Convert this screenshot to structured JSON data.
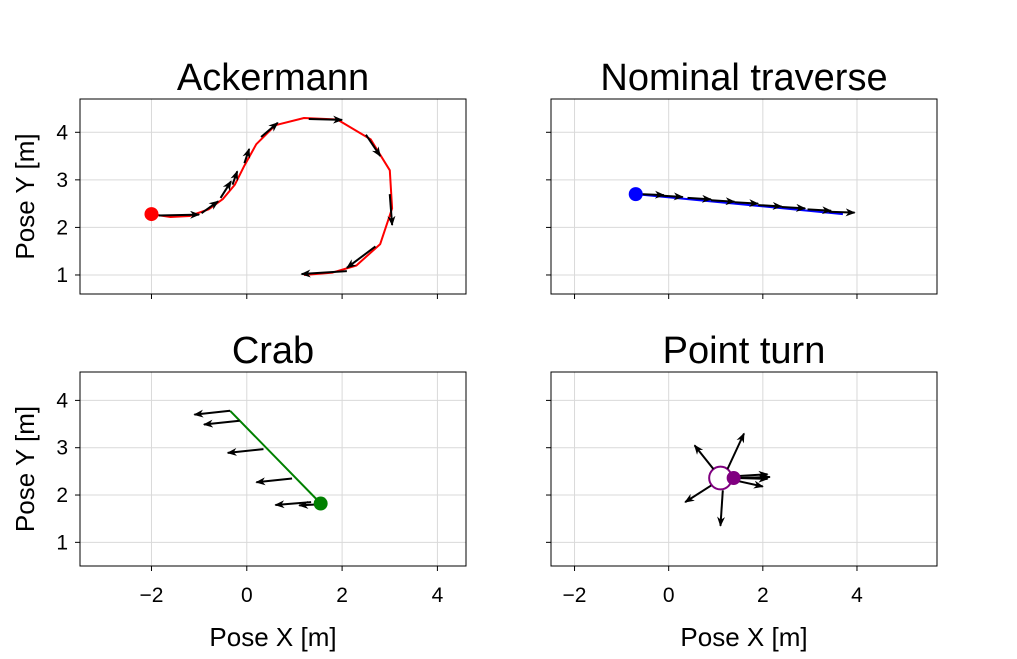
{
  "chart_data": [
    {
      "type": "line",
      "title": "Ackermann",
      "ylabel": "Pose Y [m]",
      "xlabel": "",
      "xlim": [
        -3.5,
        4.6
      ],
      "ylim": [
        0.6,
        4.7
      ],
      "xticks": [
        -2,
        0,
        2,
        4
      ],
      "yticks": [
        1,
        2,
        3,
        4
      ],
      "show_xtick_labels": false,
      "show_ytick_labels": true,
      "grid": true,
      "color": "#ff0000",
      "start": [
        -2.0,
        2.28
      ],
      "path": [
        [
          -2.0,
          2.28
        ],
        [
          -1.6,
          2.22
        ],
        [
          -1.2,
          2.24
        ],
        [
          -0.8,
          2.38
        ],
        [
          -0.5,
          2.6
        ],
        [
          -0.25,
          2.9
        ],
        [
          -0.05,
          3.3
        ],
        [
          0.2,
          3.75
        ],
        [
          0.6,
          4.15
        ],
        [
          1.2,
          4.3
        ],
        [
          1.9,
          4.27
        ],
        [
          2.6,
          3.85
        ],
        [
          3.0,
          3.2
        ],
        [
          3.05,
          2.4
        ],
        [
          2.8,
          1.65
        ],
        [
          2.3,
          1.2
        ],
        [
          1.8,
          1.05
        ],
        [
          1.2,
          1.0
        ]
      ],
      "arrows": [
        {
          "x": -1.85,
          "y": 2.25,
          "u": 0.85,
          "v": 0.02
        },
        {
          "x": -0.95,
          "y": 2.3,
          "u": 0.35,
          "v": 0.25
        },
        {
          "x": -0.55,
          "y": 2.62,
          "u": 0.22,
          "v": 0.35
        },
        {
          "x": -0.3,
          "y": 2.9,
          "u": 0.1,
          "v": 0.28
        },
        {
          "x": -0.05,
          "y": 3.35,
          "u": 0.1,
          "v": 0.3
        },
        {
          "x": 0.3,
          "y": 3.9,
          "u": 0.35,
          "v": 0.3
        },
        {
          "x": 1.3,
          "y": 4.28,
          "u": 0.7,
          "v": -0.02
        },
        {
          "x": 2.5,
          "y": 3.95,
          "u": 0.3,
          "v": -0.45
        },
        {
          "x": 3.0,
          "y": 2.7,
          "u": 0.05,
          "v": -0.65
        },
        {
          "x": 2.7,
          "y": 1.6,
          "u": -0.6,
          "v": -0.45
        },
        {
          "x": 2.1,
          "y": 1.08,
          "u": -0.95,
          "v": -0.06
        }
      ]
    },
    {
      "type": "line",
      "title": "Nominal traverse",
      "ylabel": "",
      "xlabel": "",
      "xlim": [
        -2.5,
        5.7
      ],
      "ylim": [
        0.6,
        4.7
      ],
      "xticks": [
        -2,
        0,
        2,
        4
      ],
      "yticks": [
        1,
        2,
        3,
        4
      ],
      "show_xtick_labels": false,
      "show_ytick_labels": false,
      "grid": true,
      "color": "#0000ff",
      "start": [
        -0.7,
        2.7
      ],
      "path": [
        [
          -0.7,
          2.7
        ],
        [
          3.7,
          2.28
        ]
      ],
      "arrows": [
        {
          "x": -0.6,
          "y": 2.7,
          "u": 0.5,
          "v": -0.02
        },
        {
          "x": -0.2,
          "y": 2.67,
          "u": 0.5,
          "v": -0.03
        },
        {
          "x": 0.4,
          "y": 2.62,
          "u": 0.5,
          "v": -0.03
        },
        {
          "x": 0.9,
          "y": 2.57,
          "u": 0.5,
          "v": -0.03
        },
        {
          "x": 1.4,
          "y": 2.53,
          "u": 0.5,
          "v": -0.03
        },
        {
          "x": 1.9,
          "y": 2.47,
          "u": 0.5,
          "v": -0.03
        },
        {
          "x": 2.4,
          "y": 2.43,
          "u": 0.5,
          "v": -0.03
        },
        {
          "x": 2.95,
          "y": 2.38,
          "u": 0.5,
          "v": -0.03
        },
        {
          "x": 3.4,
          "y": 2.33,
          "u": 0.55,
          "v": -0.02
        }
      ]
    },
    {
      "type": "line",
      "title": "Crab",
      "ylabel": "Pose Y [m]",
      "xlabel": "Pose X [m]",
      "xlim": [
        -3.5,
        4.6
      ],
      "ylim": [
        0.5,
        4.6
      ],
      "xticks": [
        -2,
        0,
        2,
        4
      ],
      "yticks": [
        1,
        2,
        3,
        4
      ],
      "show_xtick_labels": true,
      "show_ytick_labels": true,
      "grid": true,
      "color": "#008000",
      "start": [
        1.55,
        1.82
      ],
      "path": [
        [
          -0.35,
          3.78
        ],
        [
          1.55,
          1.82
        ]
      ],
      "arrows": [
        {
          "x": -0.35,
          "y": 3.78,
          "u": -0.75,
          "v": -0.08
        },
        {
          "x": -0.15,
          "y": 3.57,
          "u": -0.75,
          "v": -0.08
        },
        {
          "x": 0.35,
          "y": 2.97,
          "u": -0.75,
          "v": -0.08
        },
        {
          "x": 0.95,
          "y": 2.35,
          "u": -0.75,
          "v": -0.08
        },
        {
          "x": 1.35,
          "y": 1.85,
          "u": -0.75,
          "v": -0.06
        },
        {
          "x": 1.45,
          "y": 1.8,
          "u": -0.35,
          "v": -0.02
        }
      ]
    },
    {
      "type": "line",
      "title": "Point turn",
      "ylabel": "",
      "xlabel": "Pose X [m]",
      "xlim": [
        -2.5,
        5.7
      ],
      "ylim": [
        0.5,
        4.6
      ],
      "xticks": [
        -2,
        0,
        2,
        4
      ],
      "yticks": [
        1,
        2,
        3,
        4
      ],
      "show_xtick_labels": true,
      "show_ytick_labels": false,
      "grid": true,
      "color": "#800080",
      "start": [
        1.38,
        2.36
      ],
      "circle": {
        "cx": 1.1,
        "cy": 2.36,
        "r": 0.24
      },
      "arrows": [
        {
          "x": 1.25,
          "y": 2.55,
          "u": 0.35,
          "v": 0.75
        },
        {
          "x": 0.95,
          "y": 2.55,
          "u": -0.4,
          "v": 0.5
        },
        {
          "x": 0.9,
          "y": 2.2,
          "u": -0.55,
          "v": -0.35
        },
        {
          "x": 1.15,
          "y": 2.1,
          "u": -0.05,
          "v": -0.75
        },
        {
          "x": 1.45,
          "y": 2.3,
          "u": 0.55,
          "v": -0.12
        },
        {
          "x": 1.45,
          "y": 2.36,
          "u": 0.65,
          "v": -0.02
        },
        {
          "x": 1.45,
          "y": 2.4,
          "u": 0.65,
          "v": 0.04
        },
        {
          "x": 1.45,
          "y": 2.36,
          "u": 0.7,
          "v": 0.02
        }
      ]
    }
  ]
}
